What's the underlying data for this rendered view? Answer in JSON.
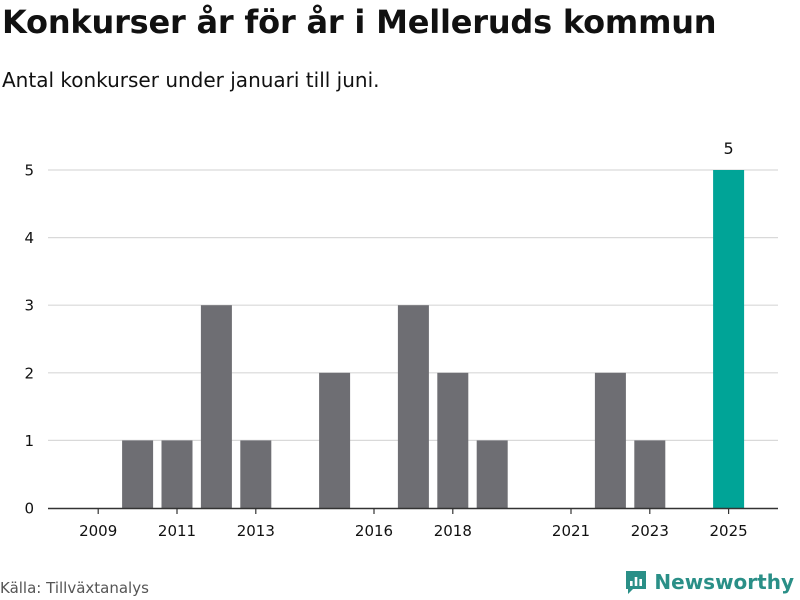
{
  "title": "Konkurser år för år i Melleruds kommun",
  "subtitle": "Antal konkurser under januari till juni.",
  "source": "Källa: Tillväxtanalys",
  "brand": {
    "name": "Newsworthy",
    "icon": "newsworthy-logo-icon"
  },
  "colors": {
    "bar_default": "#6e6e73",
    "bar_highlight": "#00a497",
    "grid": "#d9d9d9",
    "axis": "#333333",
    "brand": "#2a8f87"
  },
  "chart_data": {
    "type": "bar",
    "categories": [
      "2009",
      "2010",
      "2011",
      "2012",
      "2013",
      "2014",
      "2015",
      "2016",
      "2017",
      "2018",
      "2019",
      "2020",
      "2021",
      "2022",
      "2023",
      "2024",
      "2025"
    ],
    "values": [
      0,
      1,
      1,
      3,
      1,
      0,
      2,
      0,
      3,
      2,
      1,
      0,
      0,
      2,
      1,
      0,
      5
    ],
    "x_tick_labels": [
      "2009",
      "2011",
      "2013",
      "2016",
      "2018",
      "2021",
      "2023",
      "2025"
    ],
    "y_ticks": [
      0,
      1,
      2,
      3,
      4,
      5
    ],
    "ylim": [
      0,
      5
    ],
    "highlight": "2025",
    "data_labels": [
      {
        "category": "2025",
        "text": "5"
      }
    ],
    "xlabel": "",
    "ylabel": "",
    "grid": true
  }
}
